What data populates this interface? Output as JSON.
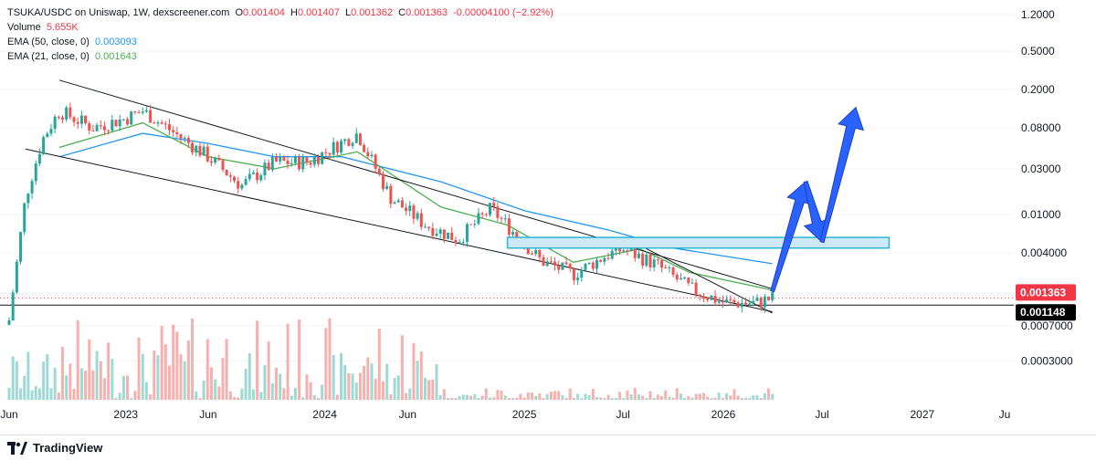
{
  "legend": {
    "symbol": "TSUKA/USDC on Uniswap, 1W, dexscreener.com",
    "o_label": "O",
    "o_value": "0.001404",
    "h_label": "H",
    "h_value": "0.001407",
    "l_label": "L",
    "l_value": "0.001362",
    "c_label": "C",
    "c_value": "0.001363",
    "change": "-0.00004100 (−2.92%)",
    "volume_label": "Volume",
    "volume_value": "5.655K",
    "ema50_label": "EMA (50, close, 0)",
    "ema50_value": "0.003093",
    "ema21_label": "EMA (21, close, 0)",
    "ema21_value": "0.001643"
  },
  "footer": {
    "brand": "TradingView"
  },
  "colors": {
    "up": "#26a69a",
    "down": "#ef5350",
    "ema50": "#2196f3",
    "ema21": "#4caf50",
    "zone_fill": "#cfe8f7",
    "zone_stroke": "#29b6d6",
    "arrow": "#2962ff",
    "price_tag": "#f23645",
    "support_tag": "#000000"
  },
  "chart_data": {
    "type": "candlestick",
    "y_scale": "log",
    "y_ticks": [
      "1.2000",
      "0.5000",
      "0.2000",
      "0.08000",
      "0.03000",
      "0.01000",
      "0.004000",
      "0.0007000",
      "0.0003000"
    ],
    "x_ticks": [
      "Jun",
      "2023",
      "Jun",
      "2024",
      "Jun",
      "2025",
      "Jul",
      "2026",
      "Jul",
      "2027",
      "Ju"
    ],
    "current_price_label": "0.001363",
    "support_level_label": "0.001148",
    "current_price": 0.001363,
    "support_level": 0.001148,
    "price_path": [
      {
        "date": "2022-06",
        "close": 0.0008
      },
      {
        "date": "2022-07",
        "close": 0.015
      },
      {
        "date": "2022-08",
        "close": 0.06
      },
      {
        "date": "2022-09",
        "close": 0.12
      },
      {
        "date": "2022-11",
        "close": 0.08
      },
      {
        "date": "2023-01",
        "close": 0.1
      },
      {
        "date": "2023-02",
        "close": 0.12
      },
      {
        "date": "2023-04",
        "close": 0.07
      },
      {
        "date": "2023-06",
        "close": 0.04
      },
      {
        "date": "2023-08",
        "close": 0.02
      },
      {
        "date": "2023-10",
        "close": 0.035
      },
      {
        "date": "2023-12",
        "close": 0.035
      },
      {
        "date": "2024-03",
        "close": 0.07
      },
      {
        "date": "2024-05",
        "close": 0.015
      },
      {
        "date": "2024-07",
        "close": 0.008
      },
      {
        "date": "2024-09",
        "close": 0.0055
      },
      {
        "date": "2024-11",
        "close": 0.0115
      },
      {
        "date": "2025-02",
        "close": 0.0033
      },
      {
        "date": "2025-04",
        "close": 0.0024
      },
      {
        "date": "2025-06",
        "close": 0.0038
      },
      {
        "date": "2025-07",
        "close": 0.0044
      },
      {
        "date": "2025-09",
        "close": 0.003
      },
      {
        "date": "2025-11",
        "close": 0.0017
      },
      {
        "date": "2026-01",
        "close": 0.00122
      },
      {
        "date": "2026-03",
        "close": 0.0012
      },
      {
        "date": "2026-04",
        "close": 0.001363
      }
    ],
    "ema50_path": [
      {
        "date": "2022-09",
        "value": 0.04
      },
      {
        "date": "2023-02",
        "value": 0.07
      },
      {
        "date": "2023-06",
        "value": 0.055
      },
      {
        "date": "2023-10",
        "value": 0.04
      },
      {
        "date": "2024-02",
        "value": 0.04
      },
      {
        "date": "2024-08",
        "value": 0.022
      },
      {
        "date": "2025-01",
        "value": 0.011
      },
      {
        "date": "2025-06",
        "value": 0.007
      },
      {
        "date": "2025-10",
        "value": 0.0045
      },
      {
        "date": "2026-04",
        "value": 0.003093
      }
    ],
    "ema21_path": [
      {
        "date": "2022-09",
        "value": 0.05
      },
      {
        "date": "2023-02",
        "value": 0.09
      },
      {
        "date": "2023-06",
        "value": 0.04
      },
      {
        "date": "2023-10",
        "value": 0.03
      },
      {
        "date": "2024-03",
        "value": 0.045
      },
      {
        "date": "2024-08",
        "value": 0.012
      },
      {
        "date": "2024-12",
        "value": 0.0078
      },
      {
        "date": "2025-04",
        "value": 0.0032
      },
      {
        "date": "2025-08",
        "value": 0.0044
      },
      {
        "date": "2025-11",
        "value": 0.0025
      },
      {
        "date": "2026-04",
        "value": 0.001643
      }
    ],
    "channel_upper": [
      {
        "date": "2022-09",
        "value": 0.25
      },
      {
        "date": "2026-04",
        "value": 0.0017
      }
    ],
    "channel_lower": [
      {
        "date": "2022-07",
        "value": 0.048
      },
      {
        "date": "2026-04",
        "value": 0.00098
      }
    ],
    "wedge_line": [
      {
        "date": "2025-08",
        "value": 0.0048
      },
      {
        "date": "2026-04",
        "value": 0.00095
      }
    ],
    "resistance_zone": {
      "from": "2024-12",
      "to": "2026-11",
      "low": 0.0045,
      "high": 0.0058
    },
    "projection_arrows": [
      {
        "from": {
          "date": "2026-04",
          "value": 0.0016
        },
        "to": {
          "date": "2026-06",
          "value": 0.022
        }
      },
      {
        "from": {
          "date": "2026-06",
          "value": 0.022
        },
        "to": {
          "date": "2026-07",
          "value": 0.0052
        }
      },
      {
        "from": {
          "date": "2026-07",
          "value": 0.0052
        },
        "to": {
          "date": "2026-09",
          "value": 0.13
        }
      }
    ]
  }
}
